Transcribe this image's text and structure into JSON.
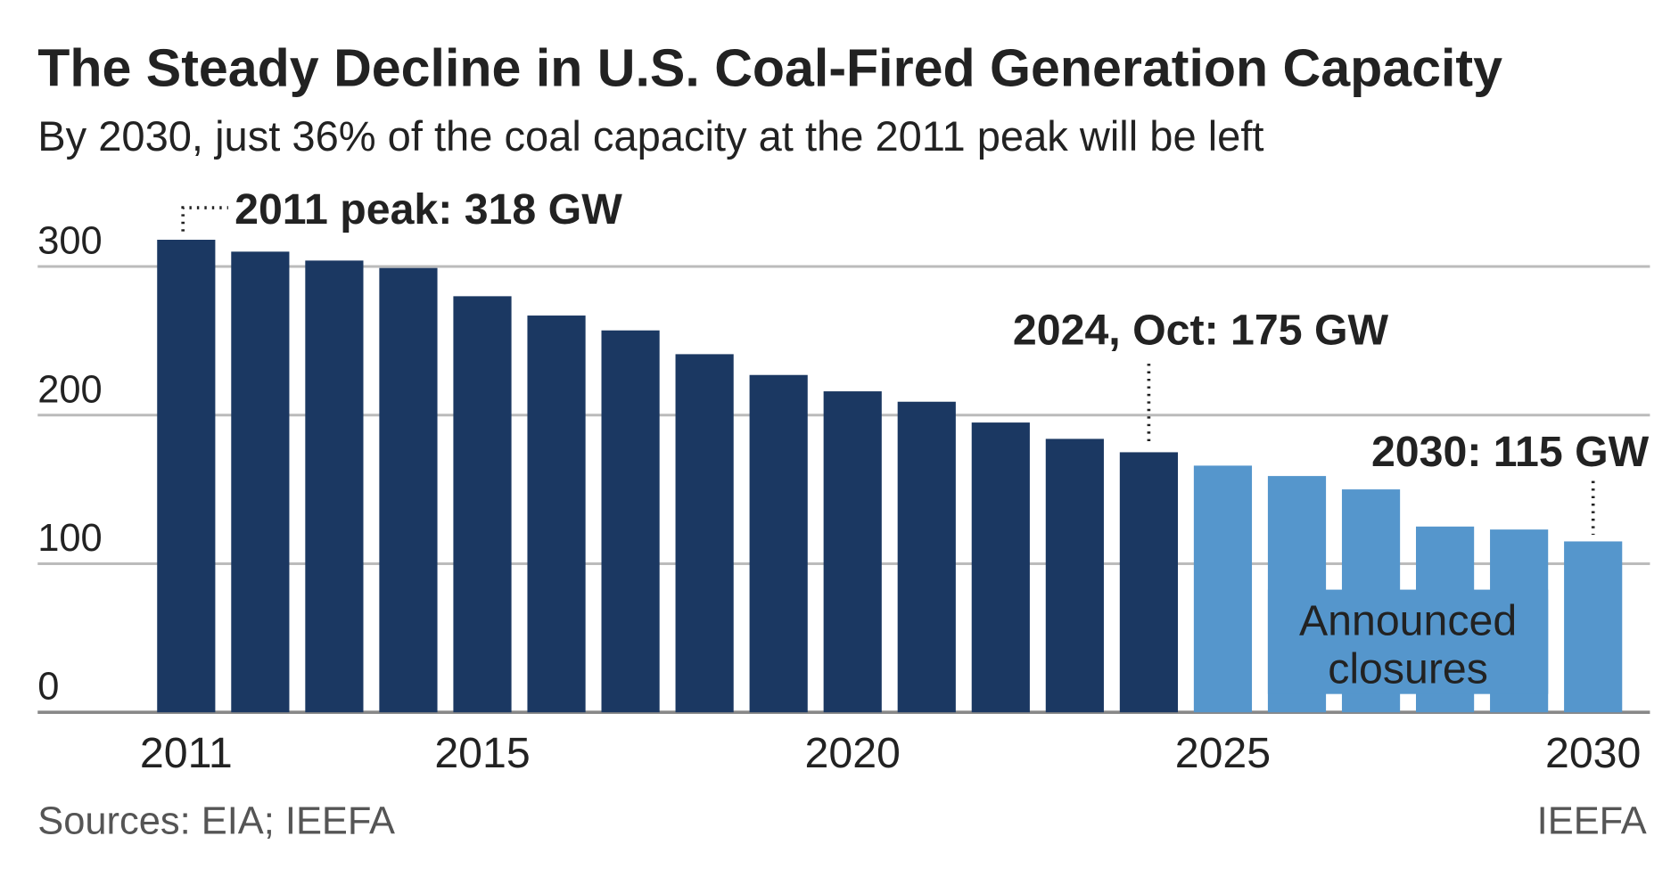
{
  "chart_data": {
    "type": "bar",
    "title": "The Steady Decline in U.S. Coal-Fired Generation Capacity",
    "subtitle": "By 2030, just 36% of the coal capacity at the 2011 peak will be left",
    "categories": [
      "2011",
      null,
      null,
      null,
      "2015",
      null,
      null,
      null,
      null,
      "2020",
      null,
      null,
      null,
      null,
      "2025",
      null,
      null,
      null,
      null,
      "2030"
    ],
    "values": [
      318,
      310,
      304,
      299,
      280,
      267,
      257,
      241,
      227,
      216,
      209,
      195,
      184,
      175,
      166,
      159,
      150,
      125,
      123,
      115
    ],
    "colors": [
      "#1b3862",
      "#1b3862",
      "#1b3862",
      "#1b3862",
      "#1b3862",
      "#1b3862",
      "#1b3862",
      "#1b3862",
      "#1b3862",
      "#1b3862",
      "#1b3862",
      "#1b3862",
      "#1b3862",
      "#1b3862",
      "#5596cc",
      "#5596cc",
      "#5596cc",
      "#5596cc",
      "#5596cc",
      "#5596cc"
    ],
    "ylim": [
      0,
      320
    ],
    "yticks": [
      0,
      100,
      200,
      300
    ],
    "grid": true,
    "annotations": [
      "2011 peak: 318 GW",
      "2024, Oct: 175 GW",
      "2030: 115 GW"
    ],
    "closures_label": [
      "Announced",
      "closures"
    ],
    "source": "Sources: EIA; IEEFA",
    "credit": "IEEFA"
  }
}
